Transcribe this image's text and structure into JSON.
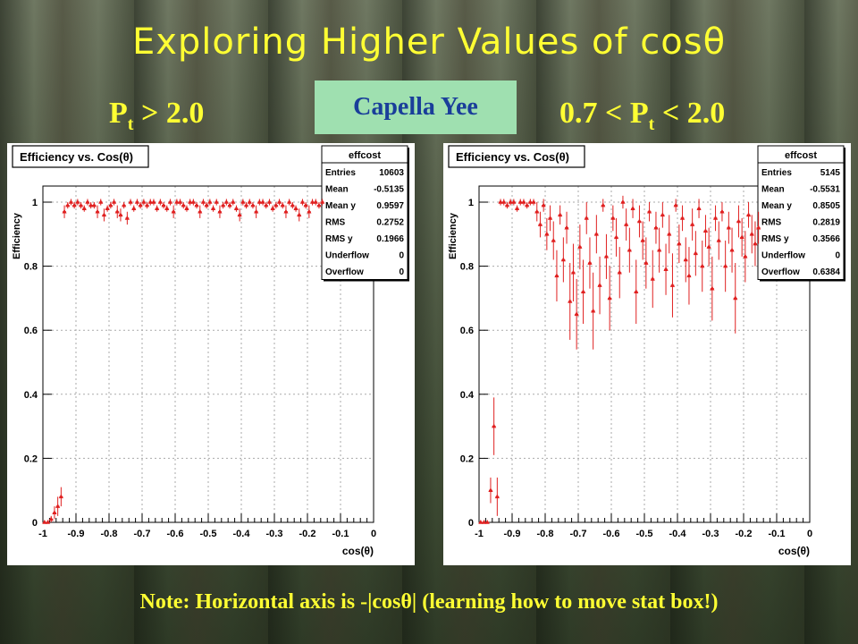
{
  "slide": {
    "title": "Exploring Higher Values of cosθ",
    "author": "Capella Yee",
    "left_subtitle": {
      "pre": "P",
      "sub": "t",
      "post": " > 2.0"
    },
    "right_subtitle": {
      "pre": "0.7 < P",
      "sub": "t",
      "post": " < 2.0"
    },
    "note": "Note: Horizontal axis is -|cosθ| (learning how to move stat box!)"
  },
  "colors": {
    "text_accent": "#ffff33",
    "marker": "#e02020",
    "author_bg": "#9fe0b0",
    "author_text": "#1a3e9a"
  },
  "chart_data": [
    {
      "type": "scatter",
      "title": "Efficiency vs. Cos(θ)",
      "xlabel": "cos(θ)",
      "ylabel": "Efficiency",
      "xlim": [
        -1.0,
        0.0
      ],
      "ylim": [
        0,
        1.0
      ],
      "x_ticks": [
        -1,
        -0.9,
        -0.8,
        -0.7,
        -0.6,
        -0.5,
        -0.4,
        -0.3,
        -0.2,
        -0.1,
        0
      ],
      "y_ticks": [
        0,
        0.2,
        0.4,
        0.6,
        0.8,
        1
      ],
      "grid": true,
      "stats_box": {
        "name": "effcost",
        "rows": [
          [
            "Entries",
            "10603"
          ],
          [
            "Mean",
            "-0.5135"
          ],
          [
            "Mean y",
            "0.9597"
          ],
          [
            "RMS",
            "0.2752"
          ],
          [
            "RMS y",
            "0.1966"
          ],
          [
            "Underflow",
            "0"
          ],
          [
            "Overflow",
            "0"
          ]
        ]
      },
      "series": [
        {
          "x": [
            -0.995,
            -0.985,
            -0.975,
            -0.965,
            -0.955,
            -0.945,
            -0.935,
            -0.925,
            -0.915,
            -0.905,
            -0.895,
            -0.885,
            -0.875,
            -0.865,
            -0.855,
            -0.845,
            -0.835,
            -0.825,
            -0.815,
            -0.805,
            -0.795,
            -0.785,
            -0.775,
            -0.765,
            -0.755,
            -0.745,
            -0.735,
            -0.725,
            -0.715,
            -0.705,
            -0.695,
            -0.685,
            -0.675,
            -0.665,
            -0.655,
            -0.645,
            -0.635,
            -0.625,
            -0.615,
            -0.605,
            -0.595,
            -0.585,
            -0.575,
            -0.565,
            -0.555,
            -0.545,
            -0.535,
            -0.525,
            -0.515,
            -0.505,
            -0.495,
            -0.485,
            -0.475,
            -0.465,
            -0.455,
            -0.445,
            -0.435,
            -0.425,
            -0.415,
            -0.405,
            -0.395,
            -0.385,
            -0.375,
            -0.365,
            -0.355,
            -0.345,
            -0.335,
            -0.325,
            -0.315,
            -0.305,
            -0.295,
            -0.285,
            -0.275,
            -0.265,
            -0.255,
            -0.245,
            -0.235,
            -0.225,
            -0.215,
            -0.205,
            -0.195,
            -0.185,
            -0.175,
            -0.165,
            -0.155
          ],
          "y": [
            0.0,
            0.0,
            0.01,
            0.03,
            0.05,
            0.08,
            0.97,
            0.99,
            1.0,
            0.99,
            1.0,
            0.99,
            0.98,
            1.0,
            0.99,
            0.99,
            0.97,
            1.0,
            0.96,
            0.98,
            0.99,
            1.0,
            0.97,
            0.96,
            0.99,
            0.95,
            1.0,
            0.98,
            1.0,
            0.99,
            1.0,
            0.99,
            1.0,
            1.0,
            0.98,
            1.0,
            0.99,
            0.98,
            1.0,
            0.97,
            1.0,
            1.0,
            0.99,
            0.98,
            1.0,
            1.0,
            0.99,
            0.97,
            1.0,
            0.99,
            1.0,
            0.98,
            1.0,
            0.97,
            0.99,
            1.0,
            0.99,
            1.0,
            0.98,
            0.96,
            1.0,
            0.99,
            1.0,
            0.99,
            0.97,
            1.0,
            1.0,
            0.99,
            1.0,
            0.98,
            0.99,
            1.0,
            0.99,
            0.97,
            1.0,
            0.99,
            0.98,
            0.96,
            1.0,
            0.99,
            0.97,
            1.0,
            1.0,
            0.99,
            1.0
          ],
          "err": [
            0.0,
            0.0,
            0.01,
            0.02,
            0.03,
            0.03,
            0.02,
            0.01,
            0.01,
            0.01,
            0.01,
            0.01,
            0.01,
            0.01,
            0.01,
            0.01,
            0.02,
            0.01,
            0.02,
            0.01,
            0.01,
            0.01,
            0.02,
            0.02,
            0.01,
            0.02,
            0.01,
            0.01,
            0.01,
            0.01,
            0.01,
            0.01,
            0.01,
            0.01,
            0.01,
            0.01,
            0.01,
            0.01,
            0.01,
            0.02,
            0.01,
            0.01,
            0.01,
            0.01,
            0.01,
            0.01,
            0.01,
            0.02,
            0.01,
            0.01,
            0.01,
            0.01,
            0.01,
            0.02,
            0.01,
            0.01,
            0.01,
            0.01,
            0.01,
            0.02,
            0.01,
            0.01,
            0.01,
            0.01,
            0.02,
            0.01,
            0.01,
            0.01,
            0.01,
            0.01,
            0.01,
            0.01,
            0.01,
            0.02,
            0.01,
            0.01,
            0.01,
            0.02,
            0.01,
            0.01,
            0.02,
            0.01,
            0.01,
            0.01,
            0.01
          ]
        }
      ]
    },
    {
      "type": "scatter",
      "title": "Efficiency vs. Cos(θ)",
      "xlabel": "cos(θ)",
      "ylabel": "Efficiency",
      "xlim": [
        -1.0,
        0.0
      ],
      "ylim": [
        0,
        1.0
      ],
      "x_ticks": [
        -1,
        -0.9,
        -0.8,
        -0.7,
        -0.6,
        -0.5,
        -0.4,
        -0.3,
        -0.2,
        -0.1,
        0
      ],
      "y_ticks": [
        0,
        0.2,
        0.4,
        0.6,
        0.8,
        1
      ],
      "grid": true,
      "stats_box": {
        "name": "effcost",
        "rows": [
          [
            "Entries",
            "5145"
          ],
          [
            "Mean",
            "-0.5531"
          ],
          [
            "Mean y",
            "0.8505"
          ],
          [
            "RMS",
            "0.2819"
          ],
          [
            "RMS y",
            "0.3566"
          ],
          [
            "Underflow",
            "0"
          ],
          [
            "Overflow",
            "0.6384"
          ]
        ]
      },
      "series": [
        {
          "x": [
            -0.995,
            -0.985,
            -0.975,
            -0.965,
            -0.955,
            -0.945,
            -0.935,
            -0.925,
            -0.915,
            -0.905,
            -0.895,
            -0.885,
            -0.875,
            -0.865,
            -0.855,
            -0.845,
            -0.835,
            -0.825,
            -0.815,
            -0.805,
            -0.795,
            -0.785,
            -0.775,
            -0.765,
            -0.755,
            -0.745,
            -0.735,
            -0.725,
            -0.715,
            -0.705,
            -0.695,
            -0.685,
            -0.675,
            -0.665,
            -0.655,
            -0.645,
            -0.635,
            -0.625,
            -0.615,
            -0.605,
            -0.595,
            -0.585,
            -0.575,
            -0.565,
            -0.555,
            -0.545,
            -0.535,
            -0.525,
            -0.515,
            -0.505,
            -0.495,
            -0.485,
            -0.475,
            -0.465,
            -0.455,
            -0.445,
            -0.435,
            -0.425,
            -0.415,
            -0.405,
            -0.395,
            -0.385,
            -0.375,
            -0.365,
            -0.355,
            -0.345,
            -0.335,
            -0.325,
            -0.315,
            -0.305,
            -0.295,
            -0.285,
            -0.275,
            -0.265,
            -0.255,
            -0.245,
            -0.235,
            -0.225,
            -0.215,
            -0.205,
            -0.195,
            -0.185,
            -0.175,
            -0.165,
            -0.155
          ],
          "y": [
            0.0,
            0.0,
            0.0,
            0.1,
            0.3,
            0.08,
            1.0,
            1.0,
            0.99,
            1.0,
            1.0,
            0.98,
            1.0,
            1.0,
            0.99,
            1.0,
            1.0,
            0.97,
            0.93,
            0.99,
            0.9,
            0.95,
            0.88,
            0.77,
            0.96,
            0.82,
            0.92,
            0.69,
            0.78,
            0.65,
            0.86,
            0.72,
            0.95,
            0.81,
            0.66,
            0.9,
            0.74,
            0.99,
            0.83,
            0.7,
            0.95,
            0.89,
            0.78,
            1.0,
            0.93,
            0.85,
            0.98,
            0.72,
            0.94,
            0.88,
            0.81,
            0.97,
            0.76,
            0.92,
            0.85,
            0.96,
            0.79,
            0.9,
            0.74,
            0.99,
            0.87,
            0.95,
            0.82,
            0.77,
            0.93,
            0.84,
            0.98,
            0.8,
            0.91,
            0.86,
            0.73,
            0.95,
            0.88,
            0.97,
            0.8,
            0.92,
            0.85,
            0.7,
            0.94,
            0.89,
            0.83,
            0.96,
            0.9,
            0.87,
            0.92
          ],
          "err": [
            0.0,
            0.0,
            0.0,
            0.04,
            0.09,
            0.06,
            0.01,
            0.01,
            0.01,
            0.01,
            0.01,
            0.01,
            0.01,
            0.01,
            0.01,
            0.01,
            0.01,
            0.03,
            0.04,
            0.02,
            0.05,
            0.04,
            0.06,
            0.08,
            0.03,
            0.07,
            0.05,
            0.12,
            0.09,
            0.11,
            0.07,
            0.1,
            0.05,
            0.08,
            0.12,
            0.06,
            0.09,
            0.02,
            0.07,
            0.1,
            0.04,
            0.06,
            0.08,
            0.02,
            0.05,
            0.07,
            0.03,
            0.1,
            0.05,
            0.06,
            0.08,
            0.03,
            0.09,
            0.05,
            0.07,
            0.04,
            0.08,
            0.06,
            0.1,
            0.02,
            0.06,
            0.04,
            0.07,
            0.09,
            0.05,
            0.07,
            0.03,
            0.08,
            0.05,
            0.06,
            0.1,
            0.04,
            0.06,
            0.03,
            0.08,
            0.05,
            0.07,
            0.11,
            0.05,
            0.06,
            0.08,
            0.04,
            0.06,
            0.07,
            0.05
          ]
        }
      ]
    }
  ]
}
